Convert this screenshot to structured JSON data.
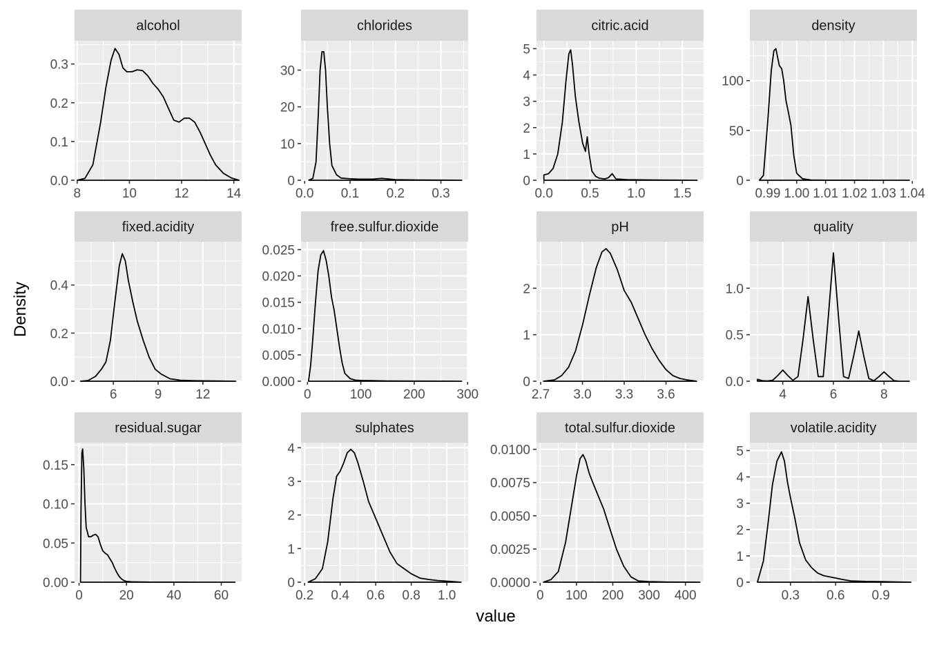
{
  "chart_data": {
    "type": "line",
    "xlabel": "value",
    "ylabel": "Density",
    "grid": true,
    "panels": [
      {
        "title": "alcohol",
        "xlim": [
          7.9,
          14.3
        ],
        "ylim": [
          0,
          0.36
        ],
        "xticks": [
          8,
          10,
          12,
          14
        ],
        "xtick_labels": [
          "8",
          "10",
          "12",
          "14"
        ],
        "yticks": [
          0.0,
          0.1,
          0.2,
          0.3
        ],
        "ytick_labels": [
          "0.0",
          "0.1",
          "0.2",
          "0.3"
        ],
        "x": [
          8.0,
          8.3,
          8.6,
          8.9,
          9.1,
          9.3,
          9.45,
          9.6,
          9.75,
          9.9,
          10.1,
          10.3,
          10.5,
          10.7,
          10.9,
          11.1,
          11.3,
          11.5,
          11.7,
          11.9,
          12.1,
          12.3,
          12.5,
          12.7,
          12.9,
          13.1,
          13.3,
          13.6,
          13.9,
          14.2
        ],
        "y": [
          0.0,
          0.005,
          0.04,
          0.15,
          0.24,
          0.31,
          0.34,
          0.325,
          0.29,
          0.28,
          0.28,
          0.285,
          0.283,
          0.27,
          0.25,
          0.235,
          0.215,
          0.185,
          0.155,
          0.15,
          0.16,
          0.16,
          0.15,
          0.125,
          0.095,
          0.065,
          0.04,
          0.018,
          0.006,
          0.0
        ]
      },
      {
        "title": "chlorides",
        "xlim": [
          -0.008,
          0.36
        ],
        "ylim": [
          0,
          38
        ],
        "xticks": [
          0.0,
          0.1,
          0.2,
          0.3
        ],
        "xtick_labels": [
          "0.0",
          "0.1",
          "0.2",
          "0.3"
        ],
        "yticks": [
          0,
          10,
          20,
          30
        ],
        "ytick_labels": [
          "0",
          "10",
          "20",
          "30"
        ],
        "x": [
          0.009,
          0.018,
          0.025,
          0.03,
          0.034,
          0.038,
          0.042,
          0.046,
          0.05,
          0.055,
          0.06,
          0.07,
          0.08,
          0.1,
          0.12,
          0.15,
          0.17,
          0.2,
          0.25,
          0.3,
          0.346
        ],
        "y": [
          0.0,
          0.5,
          5.0,
          18.0,
          30.0,
          35.0,
          35.0,
          30.0,
          20.0,
          10.0,
          4.0,
          1.5,
          0.6,
          0.4,
          0.3,
          0.3,
          0.5,
          0.15,
          0.08,
          0.04,
          0.0
        ]
      },
      {
        "title": "citric.acid",
        "xlim": [
          -0.08,
          1.73
        ],
        "ylim": [
          0,
          5.3
        ],
        "xticks": [
          0.0,
          0.5,
          1.0,
          1.5
        ],
        "xtick_labels": [
          "0.0",
          "0.5",
          "1.0",
          "1.5"
        ],
        "yticks": [
          0,
          1,
          2,
          3,
          4,
          5
        ],
        "ytick_labels": [
          "0",
          "1",
          "2",
          "3",
          "4",
          "5"
        ],
        "x": [
          0.0,
          0.05,
          0.1,
          0.15,
          0.2,
          0.24,
          0.27,
          0.29,
          0.31,
          0.34,
          0.38,
          0.42,
          0.45,
          0.47,
          0.49,
          0.52,
          0.56,
          0.6,
          0.66,
          0.7,
          0.74,
          0.78,
          0.9,
          1.2,
          1.66
        ],
        "y": [
          0.2,
          0.25,
          0.45,
          1.0,
          2.2,
          3.8,
          4.8,
          4.95,
          4.4,
          3.2,
          2.2,
          1.4,
          1.1,
          1.65,
          1.0,
          0.35,
          0.15,
          0.08,
          0.05,
          0.1,
          0.25,
          0.05,
          0.02,
          0.01,
          0.0
        ]
      },
      {
        "title": "density",
        "xlim": [
          0.9838,
          1.0416
        ],
        "ylim": [
          0,
          140
        ],
        "xticks": [
          0.99,
          1.0,
          1.01,
          1.02,
          1.03,
          1.04
        ],
        "xtick_labels": [
          "0.99",
          "1.00",
          "1.01",
          "1.02",
          "1.03",
          "1.04"
        ],
        "yticks": [
          0,
          50,
          100
        ],
        "ytick_labels": [
          "0",
          "50",
          "100"
        ],
        "x": [
          0.9871,
          0.9885,
          0.99,
          0.9912,
          0.9921,
          0.9928,
          0.9935,
          0.994,
          0.9948,
          0.9955,
          0.9963,
          0.997,
          0.998,
          0.999,
          1.0,
          1.002,
          1.005,
          1.01,
          1.02,
          1.03,
          1.039
        ],
        "y": [
          0.0,
          5.0,
          60.0,
          110.0,
          130.0,
          132.0,
          122.0,
          115.0,
          112.0,
          100.0,
          80.0,
          70.0,
          55.0,
          25.0,
          7.0,
          1.5,
          0.3,
          0.1,
          0.05,
          0.02,
          0.0
        ]
      },
      {
        "title": "fixed.acidity",
        "xlim": [
          3.4,
          14.6
        ],
        "ylim": [
          0,
          0.58
        ],
        "xticks": [
          6,
          9,
          12
        ],
        "xtick_labels": [
          "6",
          "9",
          "12"
        ],
        "yticks": [
          0.0,
          0.2,
          0.4
        ],
        "ytick_labels": [
          "0.0",
          "0.2",
          "0.4"
        ],
        "x": [
          3.8,
          4.3,
          4.8,
          5.2,
          5.5,
          5.8,
          6.1,
          6.4,
          6.6,
          6.8,
          7.0,
          7.3,
          7.6,
          8.0,
          8.4,
          8.8,
          9.2,
          9.8,
          10.5,
          11.5,
          13.0,
          14.2
        ],
        "y": [
          0.0,
          0.003,
          0.02,
          0.05,
          0.08,
          0.17,
          0.33,
          0.48,
          0.53,
          0.5,
          0.42,
          0.33,
          0.25,
          0.17,
          0.1,
          0.05,
          0.03,
          0.01,
          0.004,
          0.002,
          0.001,
          0.0
        ]
      },
      {
        "title": "free.sulfur.dioxide",
        "xlim": [
          -12,
          301
        ],
        "ylim": [
          0,
          0.0265
        ],
        "xticks": [
          0,
          100,
          200,
          300
        ],
        "xtick_labels": [
          "0",
          "100",
          "200",
          "300"
        ],
        "yticks": [
          0.0,
          0.005,
          0.01,
          0.015,
          0.02,
          0.025
        ],
        "ytick_labels": [
          "0.000",
          "0.005",
          "0.010",
          "0.015",
          "0.020",
          "0.025"
        ],
        "x": [
          2,
          6,
          10,
          15,
          20,
          25,
          30,
          35,
          40,
          45,
          50,
          55,
          60,
          65,
          70,
          80,
          90,
          100,
          120,
          150,
          200,
          250,
          289
        ],
        "y": [
          0.0,
          0.003,
          0.008,
          0.015,
          0.021,
          0.024,
          0.0248,
          0.023,
          0.02,
          0.016,
          0.0135,
          0.01,
          0.0065,
          0.0035,
          0.0015,
          0.0005,
          0.0002,
          0.00015,
          0.0001,
          5e-05,
          3e-05,
          1e-05,
          0.0
        ]
      },
      {
        "title": "pH",
        "xlim": [
          2.67,
          3.87
        ],
        "ylim": [
          0,
          3.0
        ],
        "xticks": [
          2.7,
          3.0,
          3.3,
          3.6
        ],
        "xtick_labels": [
          "2.7",
          "3.0",
          "3.3",
          "3.6"
        ],
        "yticks": [
          0,
          1,
          2
        ],
        "ytick_labels": [
          "0",
          "1",
          "2"
        ],
        "x": [
          2.72,
          2.8,
          2.85,
          2.9,
          2.95,
          3.0,
          3.05,
          3.1,
          3.14,
          3.17,
          3.2,
          3.25,
          3.3,
          3.35,
          3.4,
          3.45,
          3.5,
          3.55,
          3.6,
          3.65,
          3.7,
          3.75,
          3.82
        ],
        "y": [
          0.0,
          0.03,
          0.12,
          0.3,
          0.65,
          1.2,
          1.85,
          2.45,
          2.78,
          2.85,
          2.75,
          2.4,
          1.95,
          1.7,
          1.35,
          1.0,
          0.7,
          0.45,
          0.25,
          0.12,
          0.06,
          0.03,
          0.0
        ]
      },
      {
        "title": "quality",
        "xlim": [
          2.7,
          9.3
        ],
        "ylim": [
          0,
          1.5
        ],
        "xticks": [
          4,
          6,
          8
        ],
        "xtick_labels": [
          "4",
          "6",
          "8"
        ],
        "yticks": [
          0.0,
          0.5,
          1.0
        ],
        "ytick_labels": [
          "0.0",
          "0.5",
          "1.0"
        ],
        "x": [
          3.0,
          3.2,
          3.4,
          3.6,
          3.8,
          4.0,
          4.2,
          4.4,
          4.6,
          4.8,
          5.0,
          5.2,
          5.4,
          5.6,
          5.8,
          6.0,
          6.2,
          6.4,
          6.6,
          6.8,
          7.0,
          7.2,
          7.4,
          7.6,
          7.8,
          8.0,
          8.2,
          8.4,
          8.6,
          9.0
        ],
        "y": [
          0.02,
          0.005,
          0.002,
          0.01,
          0.06,
          0.12,
          0.06,
          0.01,
          0.05,
          0.45,
          0.91,
          0.45,
          0.05,
          0.05,
          0.7,
          1.38,
          0.7,
          0.05,
          0.03,
          0.27,
          0.54,
          0.27,
          0.03,
          0.005,
          0.05,
          0.1,
          0.05,
          0.005,
          0.0,
          0.0
        ]
      },
      {
        "title": "residual.sugar",
        "xlim": [
          -1.9,
          68.6
        ],
        "ylim": [
          0,
          0.178
        ],
        "xticks": [
          0,
          20,
          40,
          60
        ],
        "xtick_labels": [
          "0",
          "20",
          "40",
          "60"
        ],
        "yticks": [
          0.0,
          0.05,
          0.1,
          0.15
        ],
        "ytick_labels": [
          "0.00",
          "0.05",
          "0.10",
          "0.15"
        ],
        "x": [
          0.6,
          0.8,
          1.2,
          1.5,
          2.0,
          2.5,
          3.0,
          4.0,
          5.0,
          6.0,
          7.0,
          8.0,
          9.0,
          10.0,
          11.0,
          12.0,
          13.0,
          14.0,
          15.0,
          16.0,
          17.0,
          18.0,
          19.0,
          20.0,
          22.0,
          25.0,
          30.0,
          40.0,
          50.0,
          65.8
        ],
        "y": [
          0.0,
          0.09,
          0.165,
          0.17,
          0.145,
          0.1,
          0.07,
          0.058,
          0.058,
          0.06,
          0.061,
          0.058,
          0.048,
          0.04,
          0.037,
          0.035,
          0.03,
          0.025,
          0.018,
          0.012,
          0.007,
          0.004,
          0.002,
          0.001,
          0.0005,
          0.0003,
          0.0001,
          5e-05,
          2e-05,
          0.0
        ]
      },
      {
        "title": "sulphates",
        "xlim": [
          0.18,
          1.12
        ],
        "ylim": [
          0,
          4.15
        ],
        "xticks": [
          0.2,
          0.4,
          0.6,
          0.8,
          1.0
        ],
        "xtick_labels": [
          "0.2",
          "0.4",
          "0.6",
          "0.8",
          "1.0"
        ],
        "yticks": [
          0,
          1,
          2,
          3,
          4
        ],
        "ytick_labels": [
          "0",
          "1",
          "2",
          "3",
          "4"
        ],
        "x": [
          0.22,
          0.26,
          0.3,
          0.33,
          0.36,
          0.38,
          0.4,
          0.42,
          0.44,
          0.46,
          0.48,
          0.5,
          0.53,
          0.56,
          0.6,
          0.64,
          0.68,
          0.72,
          0.76,
          0.8,
          0.85,
          0.9,
          0.95,
          1.0,
          1.08
        ],
        "y": [
          0.0,
          0.1,
          0.4,
          1.2,
          2.5,
          3.15,
          3.3,
          3.55,
          3.85,
          3.95,
          3.85,
          3.55,
          3.0,
          2.4,
          1.9,
          1.4,
          0.9,
          0.55,
          0.4,
          0.25,
          0.12,
          0.08,
          0.05,
          0.03,
          0.0
        ]
      },
      {
        "title": "total.sulfur.dioxide",
        "xlim": [
          -10,
          450
        ],
        "ylim": [
          0,
          0.0105
        ],
        "xticks": [
          0,
          100,
          200,
          300,
          400
        ],
        "xtick_labels": [
          "0",
          "100",
          "200",
          "300",
          "400"
        ],
        "yticks": [
          0.0,
          0.0025,
          0.005,
          0.0075,
          0.01
        ],
        "ytick_labels": [
          "0.0000",
          "0.0025",
          "0.0050",
          "0.0075",
          "0.0100"
        ],
        "x": [
          9,
          30,
          50,
          70,
          85,
          100,
          110,
          118,
          125,
          135,
          145,
          160,
          175,
          190,
          210,
          230,
          250,
          270,
          300,
          350,
          400,
          440
        ],
        "y": [
          0.0,
          0.0002,
          0.0008,
          0.003,
          0.0055,
          0.008,
          0.0093,
          0.0096,
          0.0092,
          0.0082,
          0.0075,
          0.0065,
          0.0055,
          0.0042,
          0.0025,
          0.0012,
          0.0004,
          0.0001,
          4e-05,
          1e-05,
          5e-06,
          0.0
        ]
      },
      {
        "title": "volatile.acidity",
        "xlim": [
          0.03,
          1.14
        ],
        "ylim": [
          0,
          5.3
        ],
        "xticks": [
          0.3,
          0.6,
          0.9
        ],
        "xtick_labels": [
          "0.3",
          "0.6",
          "0.9"
        ],
        "yticks": [
          0,
          1,
          2,
          3,
          4,
          5
        ],
        "ytick_labels": [
          "0",
          "1",
          "2",
          "3",
          "4",
          "5"
        ],
        "x": [
          0.08,
          0.12,
          0.15,
          0.18,
          0.21,
          0.24,
          0.26,
          0.28,
          0.3,
          0.33,
          0.36,
          0.4,
          0.44,
          0.48,
          0.52,
          0.58,
          0.65,
          0.7,
          0.8,
          0.9,
          1.0,
          1.1
        ],
        "y": [
          0.0,
          0.8,
          2.2,
          3.7,
          4.6,
          4.95,
          4.6,
          3.8,
          3.2,
          2.4,
          1.5,
          0.85,
          0.55,
          0.35,
          0.25,
          0.18,
          0.1,
          0.05,
          0.03,
          0.02,
          0.01,
          0.0
        ]
      }
    ]
  }
}
